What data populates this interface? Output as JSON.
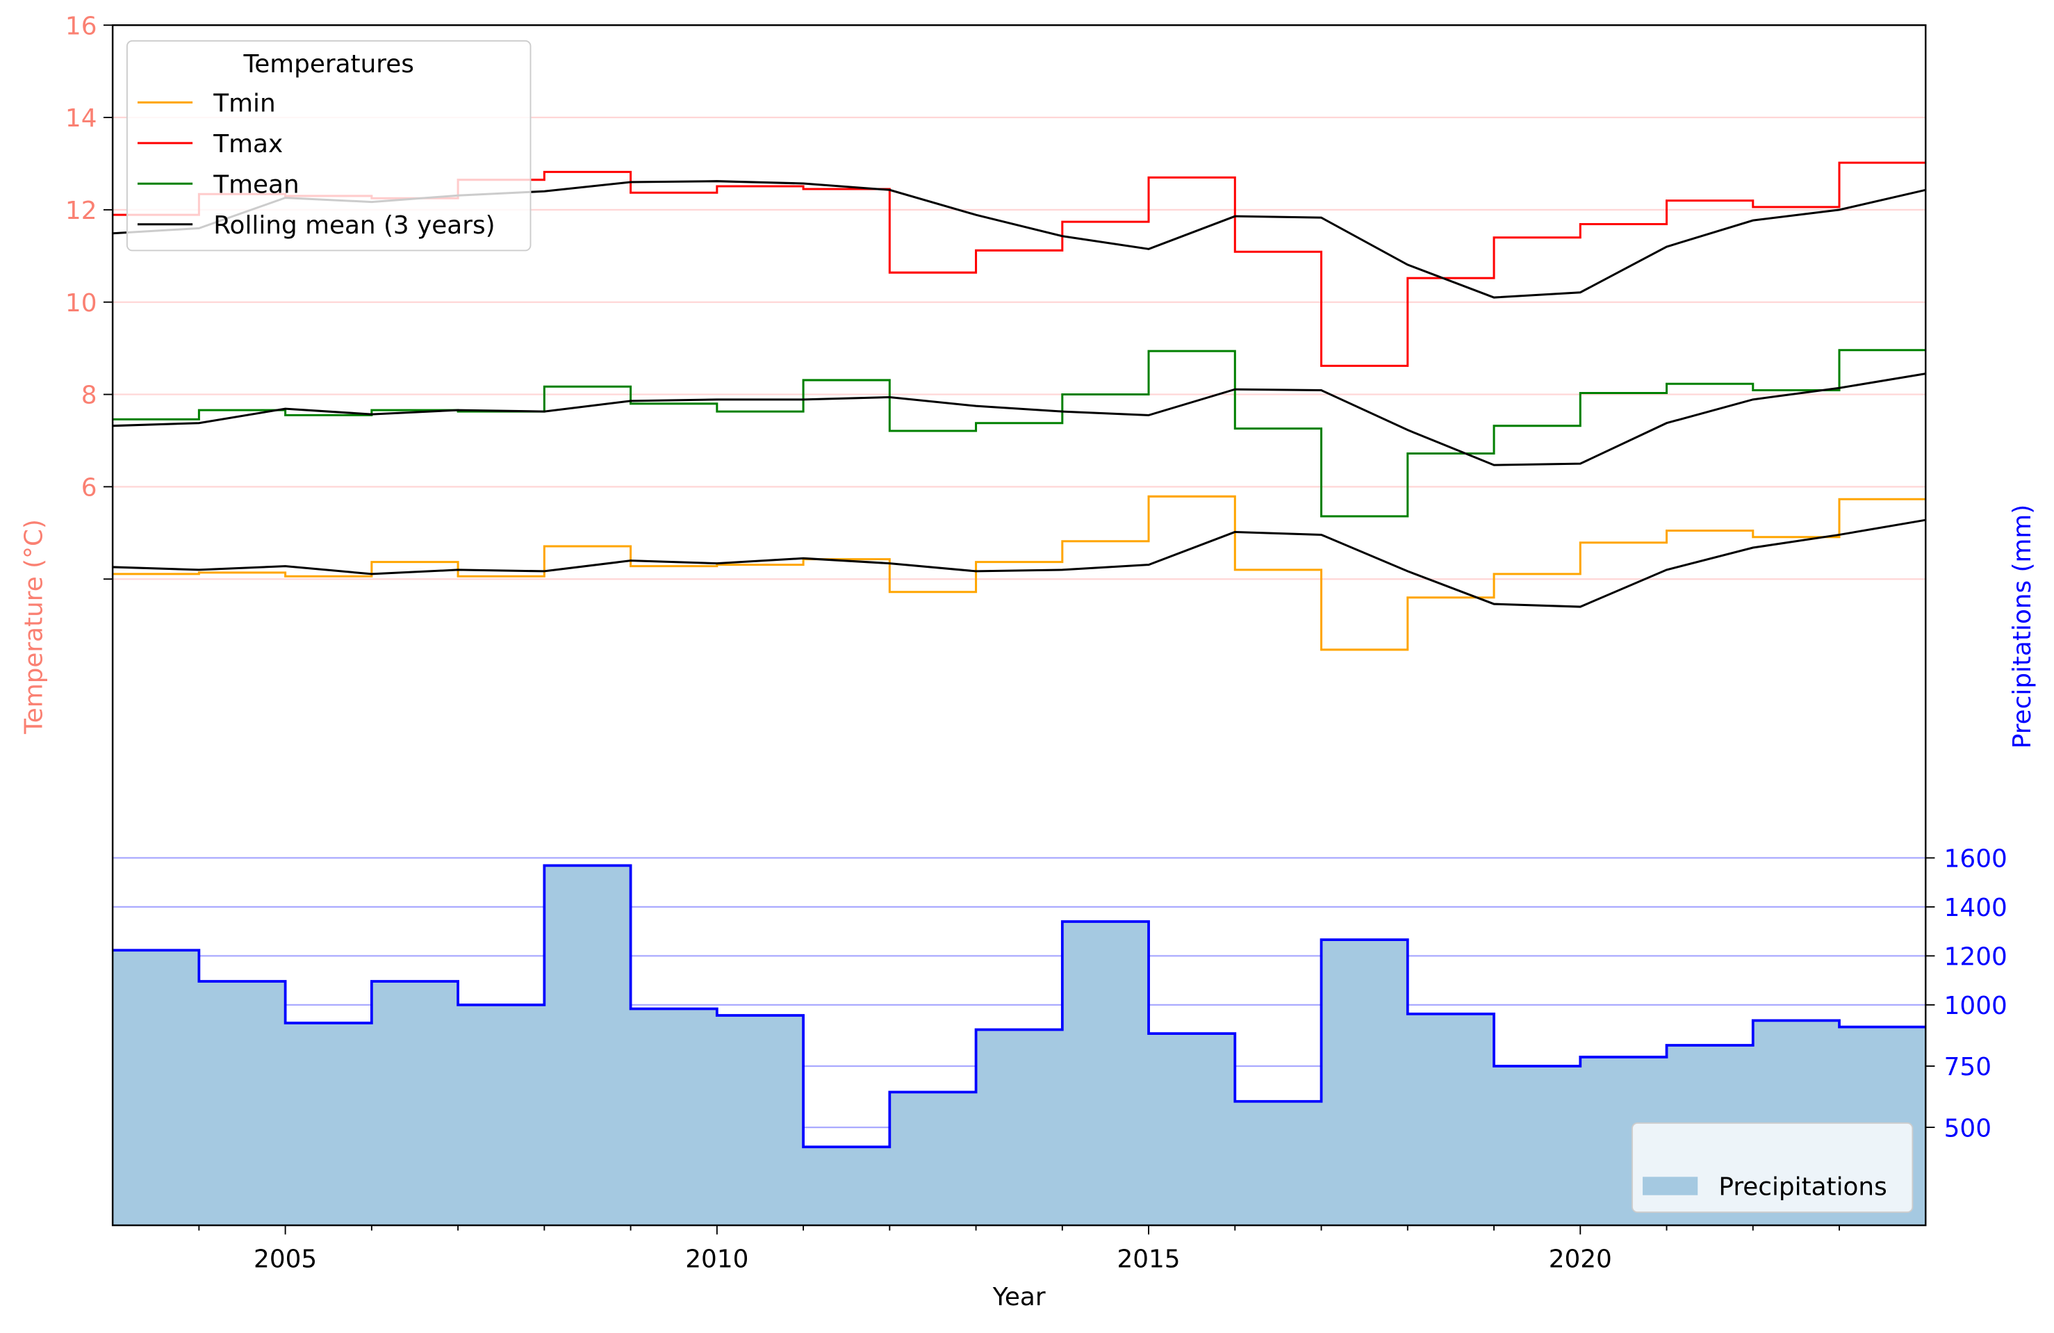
{
  "chart_data": {
    "type": "line",
    "xlabel": "Year",
    "ylabel_left": "Temperature  (°C)",
    "ylabel_right": "Precipitations (mm)",
    "xlim": [
      2003,
      2024
    ],
    "ylim_left": [
      -10,
      16
    ],
    "ylim_right": [
      100,
      5000
    ],
    "x_ticks": [
      2005,
      2010,
      2015,
      2020
    ],
    "x_minor_ticks": [
      2004,
      2006,
      2007,
      2008,
      2009,
      2011,
      2012,
      2013,
      2014,
      2016,
      2017,
      2018,
      2019,
      2021,
      2022,
      2023
    ],
    "left_ticks": [
      4,
      6,
      8,
      10,
      12,
      14,
      16
    ],
    "left_tick_labels": [
      "",
      "6",
      "8",
      "10",
      "12",
      "14",
      "16"
    ],
    "right_ticks": [
      500,
      750,
      1000,
      1200,
      1400,
      1600
    ],
    "right_tick_labels": [
      "500",
      "750",
      "1000",
      "1200",
      "1400",
      "1600"
    ],
    "grid": true,
    "colors": {
      "left_axis": "#fa8072",
      "right_axis": "#0000ff",
      "left_grid": "#ffd6d6",
      "right_grid": "#aaaaff",
      "precip_fill": "#a5c9e1",
      "precip_line": "#0000ff"
    },
    "legend_temperatures": {
      "title": "Temperatures",
      "placement": "top-left",
      "entries": [
        "Tmin",
        "Tmax",
        "Tmean",
        "Rolling mean (3 years)"
      ]
    },
    "legend_precip": {
      "placement": "bottom-right",
      "entries": [
        "Precipitations"
      ]
    },
    "years": [
      2003,
      2004,
      2005,
      2006,
      2007,
      2008,
      2009,
      2010,
      2011,
      2012,
      2013,
      2014,
      2015,
      2016,
      2017,
      2018,
      2019,
      2020,
      2021,
      2022,
      2023
    ],
    "rolling_x": [
      2003,
      2004,
      2005,
      2006,
      2007,
      2008,
      2009,
      2010,
      2011,
      2012,
      2013,
      2014,
      2015,
      2016,
      2017,
      2018,
      2019,
      2020,
      2021,
      2022,
      2023,
      2024
    ],
    "series": [
      {
        "name": "Tmin",
        "kind": "step",
        "axis": "left",
        "color": "#ffa500",
        "values": [
          4.11,
          4.14,
          4.06,
          4.37,
          4.06,
          4.71,
          4.28,
          4.31,
          4.43,
          3.72,
          4.37,
          4.82,
          5.79,
          4.2,
          2.47,
          3.6,
          4.11,
          4.79,
          5.05,
          4.91,
          5.73
        ]
      },
      {
        "name": "Tmax",
        "kind": "step",
        "axis": "left",
        "color": "#ff0000",
        "values": [
          11.89,
          12.34,
          12.3,
          12.25,
          12.65,
          12.82,
          12.37,
          12.51,
          12.45,
          10.64,
          11.12,
          11.74,
          12.7,
          11.09,
          8.62,
          10.52,
          11.4,
          11.69,
          12.2,
          12.06,
          13.02
        ]
      },
      {
        "name": "Tmean",
        "kind": "step",
        "axis": "left",
        "color": "#008000",
        "values": [
          7.46,
          7.66,
          7.55,
          7.66,
          7.63,
          8.17,
          7.8,
          7.63,
          8.31,
          7.21,
          7.38,
          8.0,
          8.94,
          7.26,
          5.36,
          6.72,
          7.32,
          8.03,
          8.23,
          8.09,
          8.96
        ]
      },
      {
        "name": "Rolling mean (3 years)",
        "kind": "rolling",
        "axis": "left",
        "color": "#000000",
        "groups": [
          [
            4.26,
            4.2,
            4.28,
            4.11,
            4.2,
            4.17,
            4.4,
            4.34,
            4.45,
            4.34,
            4.17,
            4.2,
            4.31,
            5.02,
            4.96,
            4.17,
            3.46,
            3.4,
            4.2,
            4.68,
            4.96,
            5.28
          ],
          [
            11.49,
            11.6,
            12.26,
            12.17,
            12.31,
            12.4,
            12.6,
            12.62,
            12.57,
            12.43,
            11.89,
            11.43,
            11.15,
            11.86,
            11.83,
            10.81,
            10.1,
            10.21,
            11.2,
            11.77,
            12.0,
            12.43
          ],
          [
            7.32,
            7.38,
            7.69,
            7.57,
            7.66,
            7.63,
            7.86,
            7.89,
            7.89,
            7.94,
            7.75,
            7.63,
            7.55,
            8.11,
            8.09,
            7.23,
            6.47,
            6.5,
            7.38,
            7.89,
            8.14,
            8.45
          ]
        ]
      },
      {
        "name": "Precipitations",
        "kind": "step-area",
        "axis": "right",
        "color": "#0000ff",
        "values": [
          1223,
          1096,
          926,
          1096,
          1000,
          1569,
          984,
          957,
          420,
          644,
          899,
          1340,
          883,
          606,
          1266,
          963,
          750,
          787,
          835,
          936,
          910
        ]
      }
    ]
  }
}
